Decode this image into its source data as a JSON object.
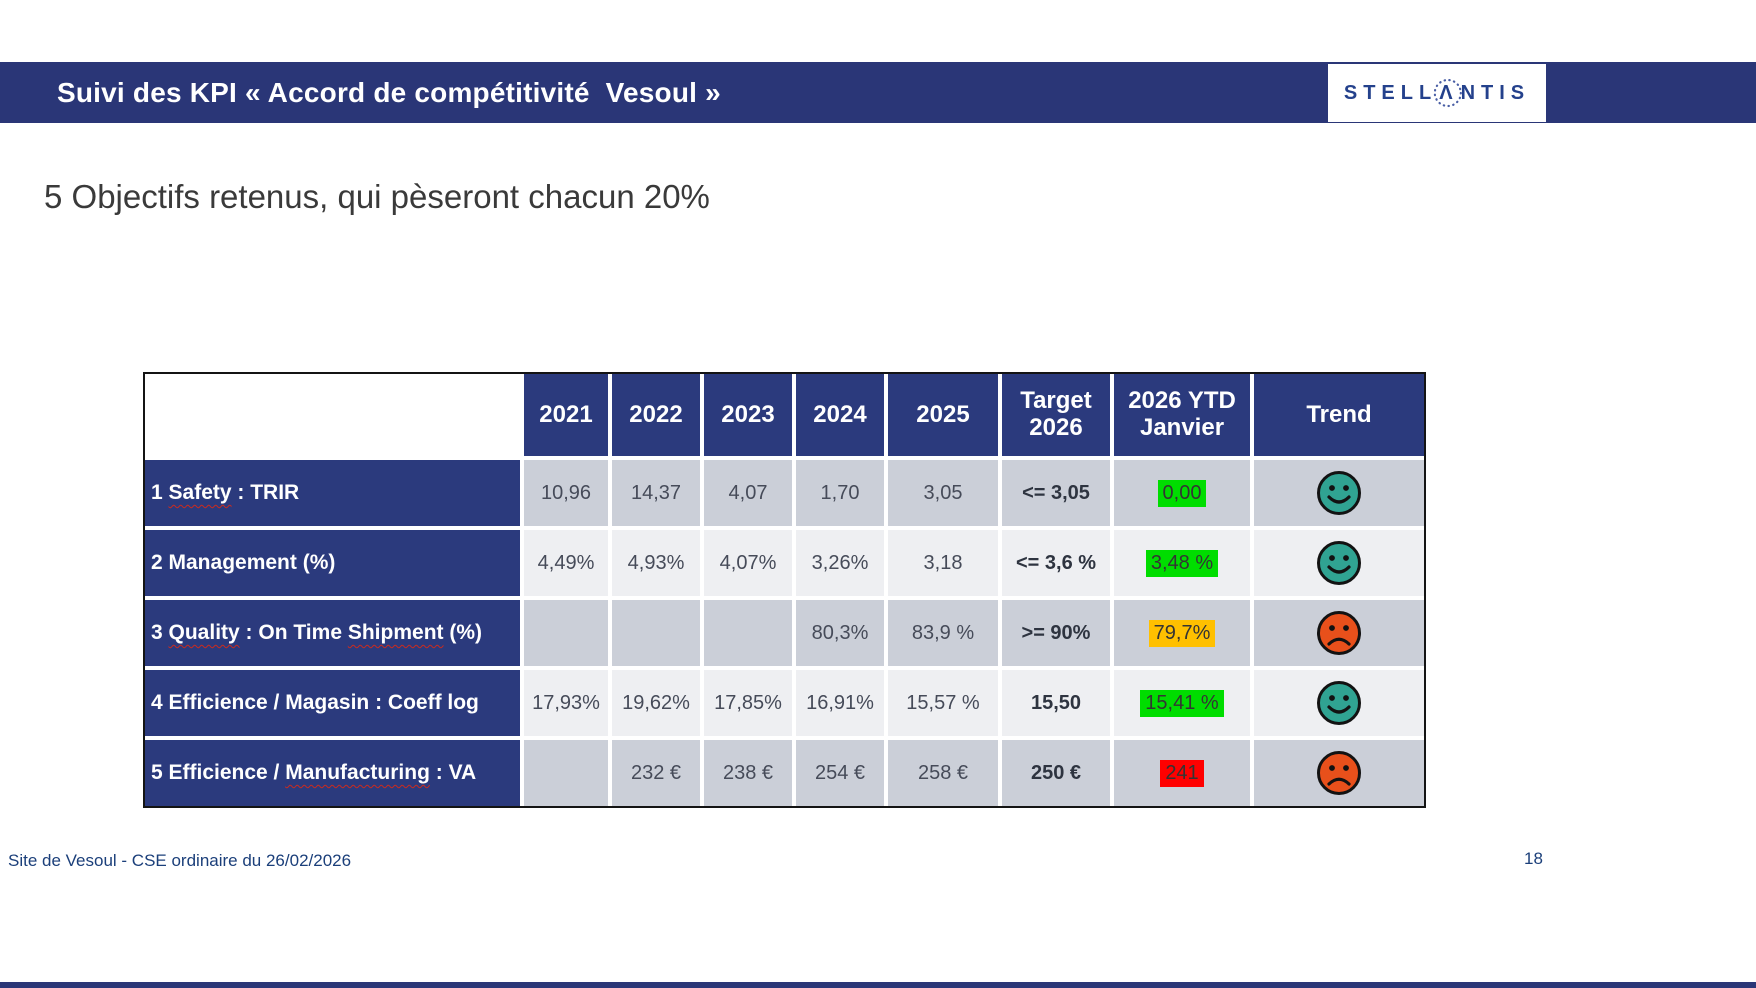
{
  "header": {
    "title": "Suivi des KPI « Accord de compétitivité  Vesoul »",
    "logo": {
      "left": "STELL",
      "a": "Λ",
      "right": "NTIS"
    }
  },
  "subtitle": "5 Objectifs retenus, qui pèseront chacun 20%",
  "table": {
    "columns": [
      "",
      "2021",
      "2022",
      "2023",
      "2024",
      "2025",
      "Target\n2026",
      "2026 YTD\nJanvier",
      "Trend"
    ],
    "rows": [
      {
        "label_parts": [
          {
            "text": "1 "
          },
          {
            "text": "Safety",
            "wavy": true
          },
          {
            "text": " : TRIR"
          }
        ],
        "values": [
          "10,96",
          "14,37",
          "4,07",
          "1,70",
          "3,05"
        ],
        "target": "<= 3,05",
        "ytd": {
          "text": "0,00",
          "highlight": "green"
        },
        "trend": "happy"
      },
      {
        "label_parts": [
          {
            "text": "2 Management (%)"
          }
        ],
        "values": [
          "4,49%",
          "4,93%",
          "4,07%",
          "3,26%",
          "3,18"
        ],
        "target": "<= 3,6 %",
        "ytd": {
          "text": "3,48 %",
          "highlight": "green"
        },
        "trend": "happy"
      },
      {
        "label_parts": [
          {
            "text": "3 "
          },
          {
            "text": "Quality",
            "wavy": true
          },
          {
            "text": " : On Time "
          },
          {
            "text": "Shipment",
            "wavy": true
          },
          {
            "text": " (%)"
          }
        ],
        "values": [
          "",
          "",
          "",
          "80,3%",
          "83,9 %"
        ],
        "target": ">= 90%",
        "ytd": {
          "text": "79,7%",
          "highlight": "orange"
        },
        "trend": "sad"
      },
      {
        "label_parts": [
          {
            "text": "4 Efficience / Magasin : Coeff log"
          }
        ],
        "values": [
          "17,93%",
          "19,62%",
          "17,85%",
          "16,91%",
          "15,57 %"
        ],
        "target": "15,50",
        "ytd": {
          "text": "15,41 %",
          "highlight": "green"
        },
        "trend": "happy"
      },
      {
        "label_parts": [
          {
            "text": "5 Efficience / "
          },
          {
            "text": "Manufacturing",
            "wavy": true
          },
          {
            "text": " : VA"
          }
        ],
        "values": [
          "",
          "232 €",
          "238 €",
          "254 €",
          "258 €"
        ],
        "target": "250 €",
        "ytd": {
          "text": "241",
          "highlight": "red"
        },
        "trend": "sad"
      }
    ]
  },
  "footer": {
    "left": "Site de Vesoul - CSE ordinaire du 26/02/2026",
    "page": "18"
  },
  "colors": {
    "banner_navy": "#2a3677",
    "table_navy": "#2b3a7d",
    "row_shade_dark": "#cbcfd8",
    "row_shade_light": "#eeeff2",
    "highlight_green": "#00dd00",
    "highlight_orange": "#ffc000",
    "highlight_red": "#ff0000",
    "smiley_happy": "#30a392",
    "smiley_sad": "#e8501b",
    "logo_blue": "#24418c"
  }
}
